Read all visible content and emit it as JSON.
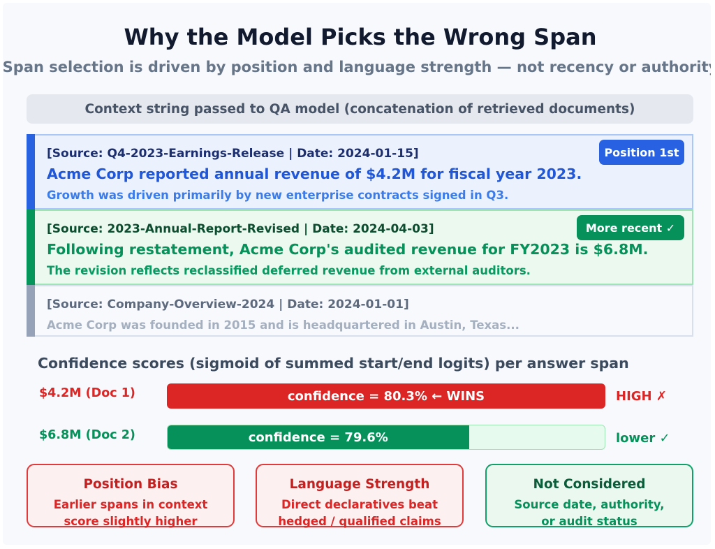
{
  "title": "Why the Model Picks the Wrong Span",
  "subtitle": "Span selection is driven by position and language strength — not recency or authority",
  "context_header": "Context string passed to QA model (concatenation of retrieved documents)",
  "documents": [
    {
      "source": "[Source: Q4-2023-Earnings-Release | Date: 2024-01-15]",
      "main": "Acme Corp reported annual revenue of $4.2M for fiscal year 2023.",
      "detail": "Growth was driven primarily by new enterprise contracts signed in Q3.",
      "tag": "Position 1st",
      "color": "#2962e0"
    },
    {
      "source": "[Source: 2023-Annual-Report-Revised | Date: 2024-04-03]",
      "main": "Following restatement, Acme Corp's audited revenue for FY2023 is $6.8M.",
      "detail": "The revision reflects reclassified deferred revenue from external auditors.",
      "tag": "More recent ✓",
      "color": "#06955b"
    },
    {
      "source": "[Source: Company-Overview-2024 | Date: 2024-01-01]",
      "detail": "Acme Corp was founded in 2015 and is headquartered in Austin, Texas...",
      "color": "#95a2b8"
    }
  ],
  "confidence": {
    "title": "Confidence scores (sigmoid of summed start/end logits) per answer span",
    "rows": [
      {
        "label": "$4.2M (Doc 1)",
        "value": 80.3,
        "bar_text": "confidence = 80.3% ← WINS",
        "verdict": "HIGH ✗",
        "color": "#dc2626"
      },
      {
        "label": "$6.8M (Doc 2)",
        "value": 79.6,
        "bar_text": "confidence = 79.6%",
        "verdict": "lower ✓",
        "color": "#07915a"
      }
    ]
  },
  "cards": [
    {
      "title": "Position Bias",
      "line1": "Earlier spans in context",
      "line2": "score slightly higher"
    },
    {
      "title": "Language Strength",
      "line1": "Direct declaratives beat",
      "line2": "hedged / qualified claims"
    },
    {
      "title": "Not Considered",
      "line1": "Source date, authority,",
      "line2": "or audit status"
    }
  ]
}
